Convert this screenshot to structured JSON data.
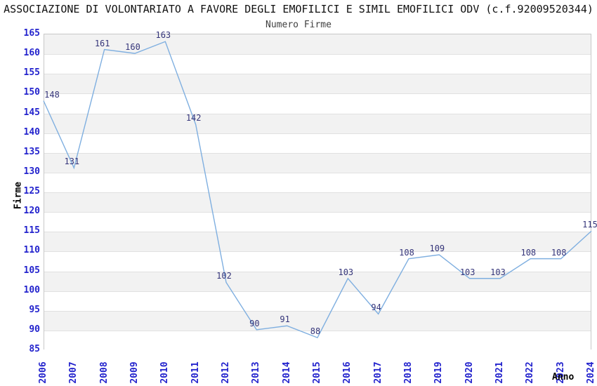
{
  "page": {
    "title": "ASSOCIAZIONE DI VOLONTARIATO A FAVORE DEGLI EMOFILICI E SIMIL EMOFILICI ODV (c.f.92009520344)"
  },
  "chart_data": {
    "type": "line",
    "title": "Numero Firme",
    "xlabel": "Anno",
    "ylabel": "Firme",
    "categories": [
      "2006",
      "2007",
      "2008",
      "2009",
      "2010",
      "2011",
      "2012",
      "2013",
      "2014",
      "2015",
      "2016",
      "2017",
      "2018",
      "2019",
      "2020",
      "2021",
      "2022",
      "2023",
      "2024"
    ],
    "series": [
      {
        "name": "Numero Firme",
        "values": [
          148,
          131,
          161,
          160,
          163,
          142,
          102,
          90,
          91,
          88,
          103,
          94,
          108,
          109,
          103,
          103,
          108,
          108,
          115
        ]
      }
    ],
    "ylim": [
      85,
      165
    ],
    "ytick_step": 5,
    "grid": "horizontal-bands",
    "legend_position": "none",
    "data_labels": true,
    "colors": {
      "line": "#7fafe0",
      "tick_label": "#2323cd",
      "data_label": "#35357a",
      "band": "#f2f2f2",
      "gridline": "#e1e1e1",
      "plot_border": "#c8c8c8",
      "title": "#111111",
      "subtitle": "#3f3f3f",
      "axis_title": "#000000"
    }
  }
}
